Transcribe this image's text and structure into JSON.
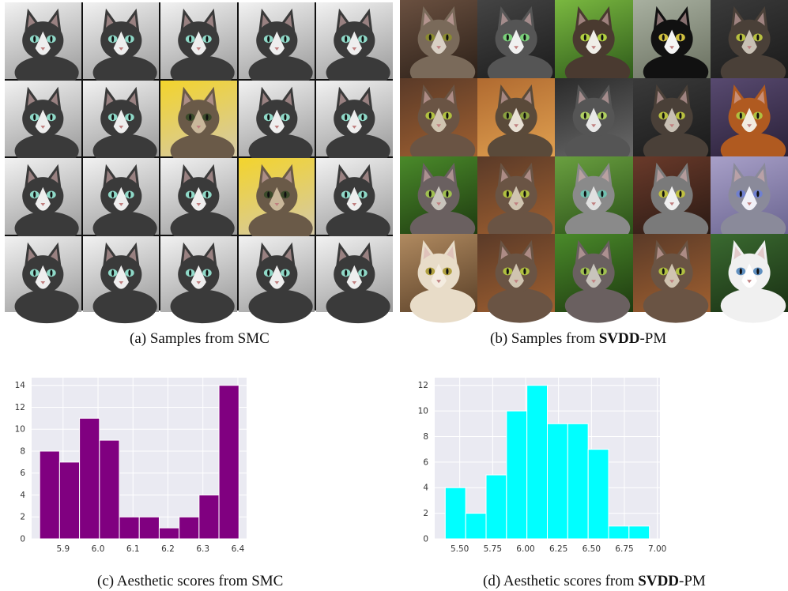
{
  "captions": {
    "a": "(a) Samples from SMC",
    "b_pre": "(b) Samples from ",
    "b_bold": "SVDD",
    "b_post": "-PM",
    "c": "(c) Aesthetic scores from SMC",
    "d_pre": "(d) Aesthetic scores from ",
    "d_bold": "SVDD",
    "d_post": "-PM"
  },
  "grid_a": {
    "rows": 4,
    "cols": 5,
    "tiles": [
      "gray",
      "gray",
      "gray",
      "gray",
      "gray",
      "gray",
      "gray",
      "yellow",
      "gray",
      "gray",
      "gray",
      "gray",
      "gray",
      "yellow",
      "gray",
      "gray",
      "gray",
      "gray",
      "gray",
      "gray"
    ]
  },
  "grid_b": {
    "rows": 4,
    "cols": 5,
    "tiles": [
      "tabby-brown",
      "gray-white",
      "green-white",
      "black-white",
      "dark-tabby",
      "brown-tabby",
      "tabby-warm",
      "gray-tabby",
      "dark-tabby",
      "orange-white",
      "green-tabby",
      "brown-tabby",
      "green-gray",
      "silver-tabby",
      "purple-gray",
      "cream",
      "brown-tabby",
      "green-tabby",
      "brown-tabby",
      "white"
    ]
  },
  "chart_data": [
    {
      "type": "bar",
      "id": "c",
      "bin_edges": [
        5.833,
        5.89,
        5.947,
        6.004,
        6.061,
        6.118,
        6.175,
        6.232,
        6.289,
        6.346,
        6.403
      ],
      "values": [
        8,
        7,
        11,
        9,
        2,
        2,
        1,
        2,
        4,
        14
      ],
      "xlim": [
        5.81,
        6.425
      ],
      "ylim": [
        0,
        14.7
      ],
      "xticks": [
        5.9,
        6.0,
        6.1,
        6.2,
        6.3,
        6.4
      ],
      "xtick_labels": [
        "5.9",
        "6.0",
        "6.1",
        "6.2",
        "6.3",
        "6.4"
      ],
      "yticks": [
        0,
        2,
        4,
        6,
        8,
        10,
        12,
        14
      ],
      "ytick_labels": [
        "0",
        "2",
        "4",
        "6",
        "8",
        "10",
        "12",
        "14"
      ],
      "bar_color": "#800080",
      "grid": true
    },
    {
      "type": "bar",
      "id": "d",
      "bin_edges": [
        5.39,
        5.545,
        5.7,
        5.855,
        6.01,
        6.165,
        6.32,
        6.475,
        6.63,
        6.785,
        6.94
      ],
      "values": [
        4,
        2,
        5,
        10,
        12,
        9,
        9,
        7,
        1,
        1
      ],
      "xlim": [
        5.31,
        7.02
      ],
      "ylim": [
        0,
        12.6
      ],
      "xticks": [
        5.5,
        5.75,
        6.0,
        6.25,
        6.5,
        6.75,
        7.0
      ],
      "xtick_labels": [
        "5.50",
        "5.75",
        "6.00",
        "6.25",
        "6.50",
        "6.75",
        "7.00"
      ],
      "yticks": [
        0,
        2,
        4,
        6,
        8,
        10,
        12
      ],
      "ytick_labels": [
        "0",
        "2",
        "4",
        "6",
        "8",
        "10",
        "12"
      ],
      "bar_color": "#00ffff",
      "grid": true
    }
  ]
}
